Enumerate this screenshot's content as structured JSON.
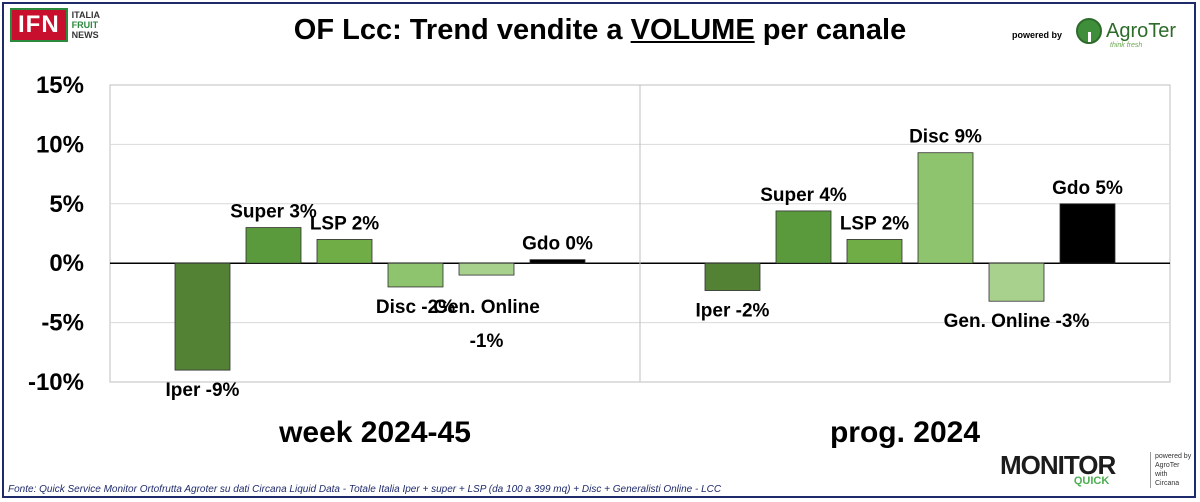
{
  "header": {
    "logo_main": "IFN",
    "logo_sub": [
      "ITALIA",
      "FRUIT",
      "NEWS"
    ],
    "title_prefix": "OF Lcc: Trend vendite a ",
    "title_emphasis": "VOLUME",
    "title_suffix": " per canale",
    "powered_by": "powered by",
    "brand": "AgroTer",
    "brand_tagline": "think fresh"
  },
  "chart_data": {
    "type": "bar",
    "y_ticks": [
      "15%",
      "10%",
      "5%",
      "0%",
      "-5%",
      "-10%"
    ],
    "ylim": [
      -10,
      15
    ],
    "grid": true,
    "colors": {
      "Iper": "#548235",
      "Super": "#5a9a3c",
      "LSP": "#70ad47",
      "Disc": "#8fc46e",
      "Gen. Online": "#a9d18e",
      "Gdo": "#000000"
    },
    "panels": [
      {
        "name": "week 2024-45",
        "bars": [
          {
            "category": "Iper",
            "value": -9,
            "label": "Iper -9%"
          },
          {
            "category": "Super",
            "value": 3,
            "label": "Super 3%"
          },
          {
            "category": "LSP",
            "value": 2,
            "label": "LSP 2%"
          },
          {
            "category": "Disc",
            "value": -2,
            "label": "Disc -2%"
          },
          {
            "category": "Gen. Online",
            "value": -1,
            "label": "Gen. Online -1%"
          },
          {
            "category": "Gdo",
            "value": 0.3,
            "label": "Gdo 0%"
          }
        ]
      },
      {
        "name": "prog. 2024",
        "bars": [
          {
            "category": "Iper",
            "value": -2.3,
            "label": "Iper -2%"
          },
          {
            "category": "Super",
            "value": 4.4,
            "label": "Super 4%"
          },
          {
            "category": "LSP",
            "value": 2,
            "label": "LSP 2%"
          },
          {
            "category": "Disc",
            "value": 9.3,
            "label": "Disc 9%"
          },
          {
            "category": "Gen. Online",
            "value": -3.2,
            "label": "Gen. Online -3%"
          },
          {
            "category": "Gdo",
            "value": 5,
            "label": "Gdo 5%"
          }
        ]
      }
    ]
  },
  "footer": {
    "source": "Fonte: Quick Service Monitor Ortofrutta Agroter su dati Circana Liquid Data - Totale Italia Iper + super + LSP (da 100 a 399 mq) + Disc + Generalisti Online - LCC",
    "logo_word": "MONITOR",
    "logo_quick": "QUICK",
    "side_lines": [
      "powered by",
      "AgroTer",
      "with",
      "Circana"
    ]
  }
}
